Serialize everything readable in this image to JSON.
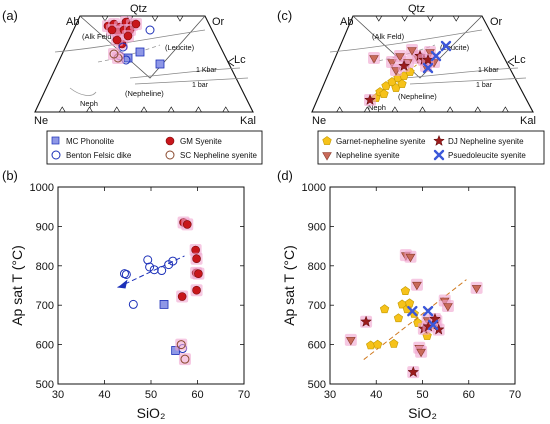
{
  "panels": {
    "a": {
      "letter": "(a)"
    },
    "b": {
      "letter": "(b)"
    },
    "c": {
      "letter": "(c)"
    },
    "d": {
      "letter": "(d)"
    }
  },
  "ternary": {
    "corners": {
      "qtz": "Qtz",
      "ab": "Ab",
      "or": "Or",
      "lc": "Lc",
      "ne": "Ne",
      "kal": "Kal"
    },
    "fields": {
      "alk_feld": "(Alk Feld)",
      "leucite": "(Leucite)",
      "nepheline": "(Nepheline)",
      "neph": "Neph"
    },
    "pressure": {
      "kbar": "1 Kbar",
      "bar": "1 bar"
    }
  },
  "legend_a": {
    "mc_phonolite": "MC Phonolite",
    "benton_felsic": "Benton Felsic dike",
    "gm_syenite": "GM Syenite",
    "sc_nepheline": "SC Nepheline syenite"
  },
  "legend_c": {
    "garnet_nepheline": "Garnet-nepheline syenite",
    "nepheline_syenite": "Nepheline syenite",
    "dj_nepheline": "DJ Nepheline syenite",
    "psuedoleucite": "Psuedoleucite syenite"
  },
  "colors": {
    "mc": "#8e97e6",
    "benton": "#1b2fb8",
    "gm": "#c8161b",
    "sc": "#8a4a2e",
    "garnet": "#f6c21a",
    "neph_syen": "#c96a5a",
    "dj": "#9b1c1c",
    "psl": "#3b57d9",
    "highlight": "#f0a4cf"
  },
  "chart_data": [
    {
      "panel": "b",
      "type": "scatter",
      "xlabel": "SiO₂",
      "ylabel": "Ap sat T (°C)",
      "xlim": [
        30,
        70
      ],
      "ylim": [
        500,
        1000
      ],
      "xticks": [
        30,
        40,
        50,
        60,
        70
      ],
      "yticks": [
        500,
        600,
        700,
        800,
        900,
        1000
      ],
      "series": [
        {
          "key": "mc_phonolite",
          "marker": "square",
          "points": [
            [
              52.8,
              702
            ],
            [
              55.3,
              585
            ]
          ]
        },
        {
          "key": "benton_felsic",
          "marker": "circle-open",
          "points": [
            [
              44.3,
              780
            ],
            [
              44.7,
              778
            ],
            [
              46.2,
              702
            ],
            [
              49.3,
              815
            ],
            [
              49.7,
              797
            ],
            [
              50.7,
              790
            ],
            [
              52.3,
              788
            ],
            [
              53.8,
              803
            ],
            [
              54.7,
              812
            ],
            [
              56.8,
              590
            ]
          ]
        },
        {
          "key": "gm_syenite",
          "marker": "circle",
          "points": [
            [
              56.7,
              722
            ],
            [
              57.0,
              910
            ],
            [
              57.8,
              905
            ],
            [
              59.6,
              840
            ],
            [
              59.8,
              818
            ],
            [
              59.7,
              782
            ],
            [
              60.2,
              780
            ],
            [
              59.8,
              738
            ]
          ]
        },
        {
          "key": "sc_nepheline",
          "marker": "circle-open",
          "points": [
            [
              56.5,
              600
            ],
            [
              57.3,
              563
            ]
          ]
        }
      ],
      "trend": [
        [
          42.8,
          745
        ],
        [
          57.2,
          825
        ]
      ]
    },
    {
      "panel": "d",
      "type": "scatter",
      "xlabel": "SiO₂",
      "ylabel": "Ap sat T (°C)",
      "xlim": [
        30,
        70
      ],
      "ylim": [
        500,
        1000
      ],
      "xticks": [
        30,
        40,
        50,
        60,
        70
      ],
      "yticks": [
        500,
        600,
        700,
        800,
        900,
        1000
      ],
      "series": [
        {
          "key": "garnet_nepheline",
          "marker": "pentagon",
          "points": [
            [
              38.8,
              598
            ],
            [
              40.3,
              600
            ],
            [
              41.8,
              690
            ],
            [
              43.8,
              602
            ],
            [
              44.8,
              667
            ],
            [
              45.6,
              702
            ],
            [
              46.3,
              736
            ],
            [
              46.7,
              690
            ],
            [
              47.2,
              705
            ],
            [
              48.2,
              678
            ],
            [
              49.0,
              655
            ],
            [
              51.0,
              622
            ],
            [
              52.0,
              650
            ]
          ]
        },
        {
          "key": "nepheline_syenite",
          "marker": "triangle-down",
          "points": [
            [
              34.5,
              612
            ],
            [
              46.4,
              827
            ],
            [
              47.4,
              823
            ],
            [
              48.8,
              752
            ],
            [
              49.3,
              592
            ],
            [
              49.7,
              582
            ],
            [
              51.1,
              662
            ],
            [
              53.0,
              660
            ],
            [
              54.8,
              712
            ],
            [
              55.5,
              698
            ],
            [
              61.7,
              744
            ]
          ]
        },
        {
          "key": "dj_nepheline",
          "marker": "star",
          "points": [
            [
              37.8,
              658
            ],
            [
              48.0,
              530
            ],
            [
              50.3,
              640
            ],
            [
              51.3,
              646
            ],
            [
              52.7,
              665
            ],
            [
              53.5,
              638
            ]
          ]
        },
        {
          "key": "psuedoleucite",
          "marker": "cross",
          "points": [
            [
              47.8,
              685
            ],
            [
              51.2,
              685
            ],
            [
              52.3,
              650
            ]
          ]
        }
      ],
      "trend": [
        [
          37.3,
          562
        ],
        [
          59.5,
          765
        ]
      ]
    }
  ]
}
